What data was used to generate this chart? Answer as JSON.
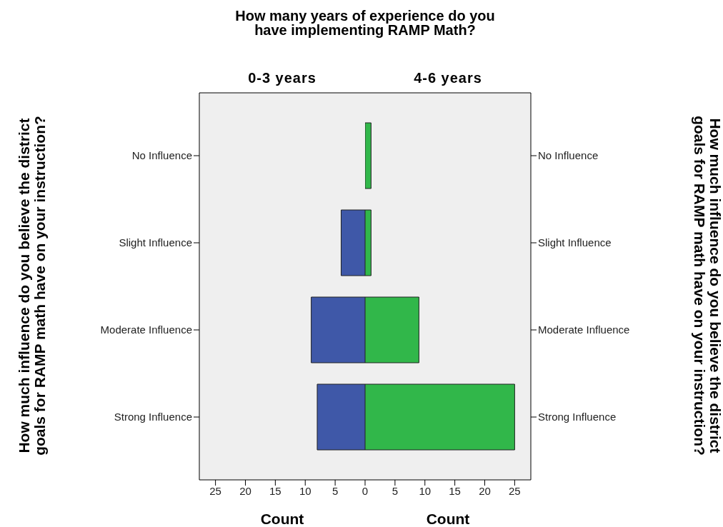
{
  "chart_data": [
    {
      "type": "bar",
      "orientation": "horizontal",
      "title": "How many years of experience do you have implementing RAMP Math?",
      "subtitle": "0-3 years",
      "ylabel": "How much influence do you believe the district goals for RAMP math have on your instruction?",
      "xlabel": "Count",
      "categories": [
        "No Influence",
        "Slight Influence",
        "Moderate Influence",
        "Strong Influence"
      ],
      "series": [
        {
          "color": "#3f58a8",
          "values": [
            0,
            4,
            9,
            8
          ]
        }
      ],
      "xlim": [
        27.7,
        0
      ],
      "xticks": [
        25,
        20,
        15,
        10,
        5
      ]
    },
    {
      "type": "bar",
      "orientation": "horizontal",
      "subtitle": "4-6 years",
      "ylabel": "How much influence do you believe the district goals for RAMP math have on your instruction?",
      "xlabel": "Count",
      "categories": [
        "No Influence",
        "Slight Influence",
        "Moderate Influence",
        "Strong Influence"
      ],
      "series": [
        {
          "color": "#31b74a",
          "values": [
            1,
            1,
            9,
            25
          ]
        }
      ],
      "xlim": [
        0,
        27.7
      ],
      "xticks": [
        0,
        5,
        10,
        15,
        20,
        25
      ]
    }
  ]
}
